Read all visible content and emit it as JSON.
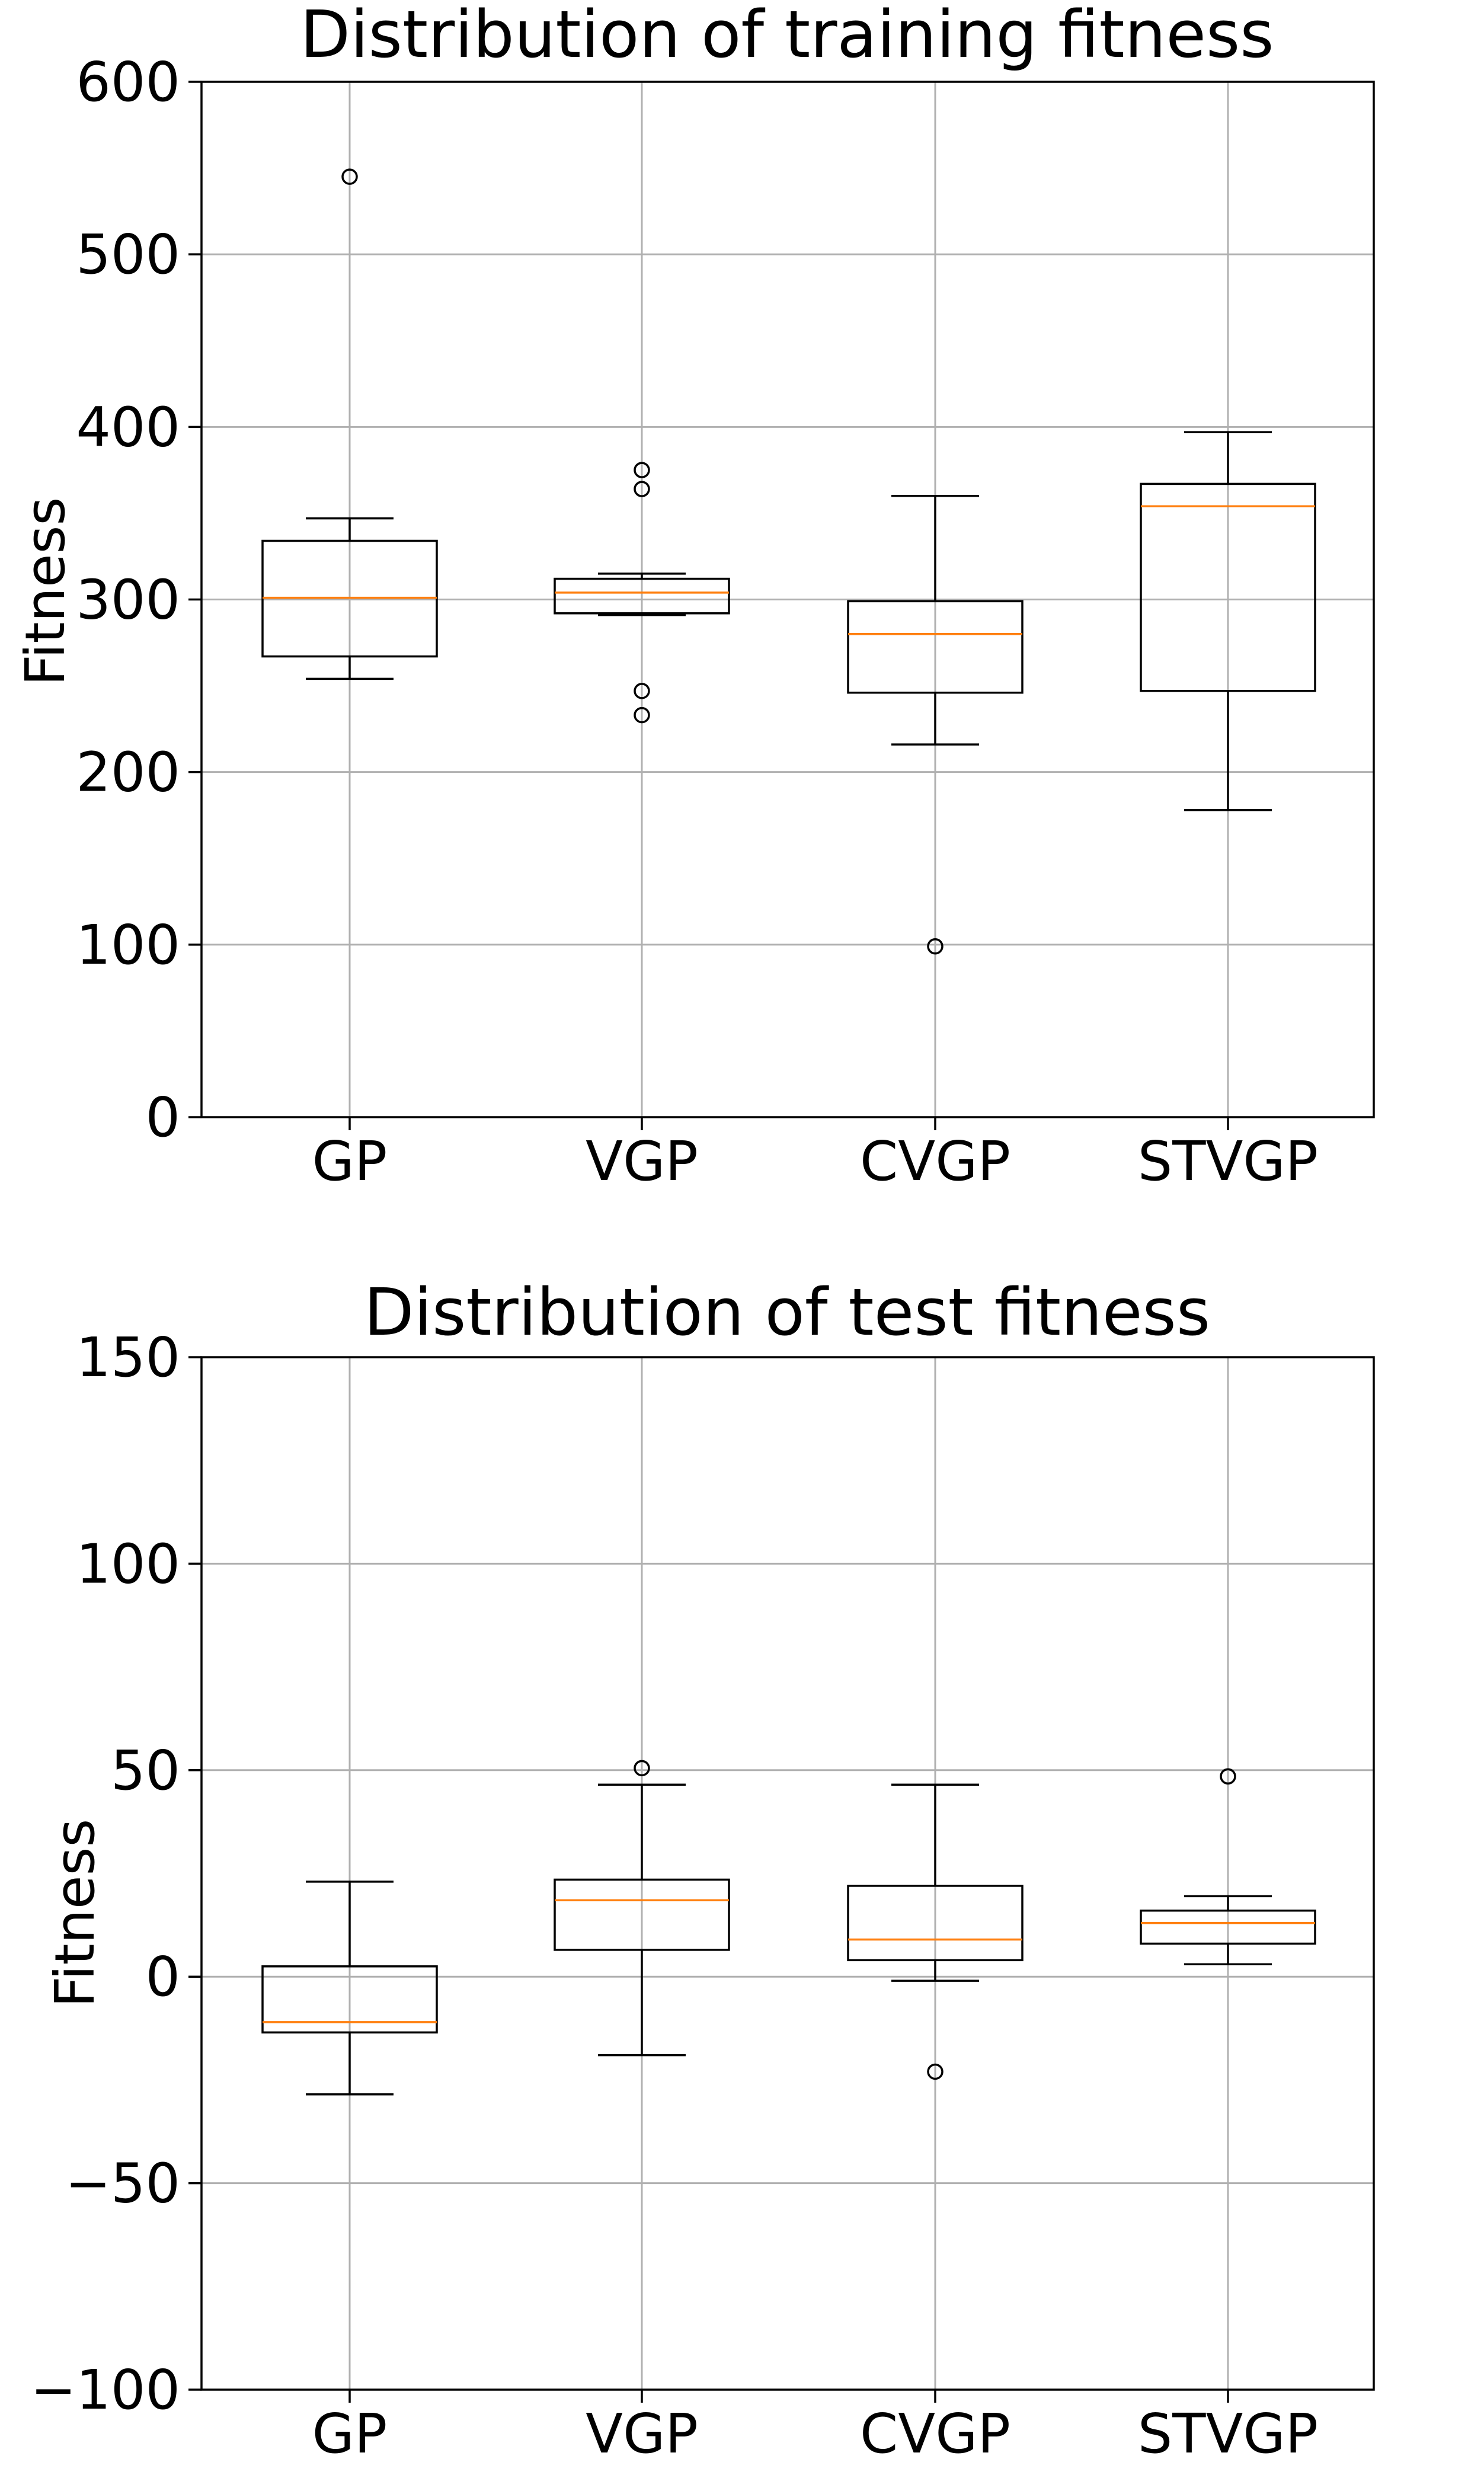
{
  "chart_data": [
    {
      "type": "box",
      "title": "Distribution of training fitness",
      "xlabel": "",
      "ylabel": "Fitness",
      "ylim": [
        0,
        600
      ],
      "yticks": [
        0,
        100,
        200,
        300,
        400,
        500,
        600
      ],
      "ytick_labels": [
        "0",
        "100",
        "200",
        "300",
        "400",
        "500",
        "600"
      ],
      "grid": true,
      "categories": [
        "GP",
        "VGP",
        "CVGP",
        "STVGP"
      ],
      "boxes": [
        {
          "name": "GP",
          "whisker_low": 254,
          "q1": 267,
          "median": 301,
          "q3": 334,
          "whisker_high": 347,
          "outliers": [
            545
          ]
        },
        {
          "name": "VGP",
          "whisker_low": 291,
          "q1": 292,
          "median": 304,
          "q3": 312,
          "whisker_high": 315,
          "outliers": [
            375,
            364,
            247,
            233
          ]
        },
        {
          "name": "CVGP",
          "whisker_low": 216,
          "q1": 246,
          "median": 280,
          "q3": 299,
          "whisker_high": 360,
          "outliers": [
            99
          ]
        },
        {
          "name": "STVGP",
          "whisker_low": 178,
          "q1": 247,
          "median": 354,
          "q3": 367,
          "whisker_high": 397,
          "outliers": []
        }
      ]
    },
    {
      "type": "box",
      "title": "Distribution of test fitness",
      "xlabel": "",
      "ylabel": "Fitness",
      "ylim": [
        -100,
        150
      ],
      "yticks": [
        -100,
        -50,
        0,
        50,
        100,
        150
      ],
      "ytick_labels": [
        "−100",
        "−50",
        "0",
        "50",
        "100",
        "150"
      ],
      "grid": true,
      "categories": [
        "GP",
        "VGP",
        "CVGP",
        "STVGP"
      ],
      "boxes": [
        {
          "name": "GP",
          "whisker_low": -28.5,
          "q1": -13.5,
          "median": -11,
          "q3": 2.5,
          "whisker_high": 23,
          "outliers": []
        },
        {
          "name": "VGP",
          "whisker_low": -19,
          "q1": 6.5,
          "median": 18.5,
          "q3": 23.5,
          "whisker_high": 46.5,
          "outliers": [
            50.5
          ]
        },
        {
          "name": "CVGP",
          "whisker_low": -1,
          "q1": 4,
          "median": 9,
          "q3": 22,
          "whisker_high": 46.5,
          "outliers": [
            -23
          ]
        },
        {
          "name": "STVGP",
          "whisker_low": 3,
          "q1": 8,
          "median": 13,
          "q3": 16,
          "whisker_high": 19.5,
          "outliers": [
            48.5
          ]
        }
      ]
    }
  ],
  "colors": {
    "box": "#000000",
    "median": "#ff7f0e",
    "grid": "#b0b0b0",
    "background": "#ffffff"
  }
}
